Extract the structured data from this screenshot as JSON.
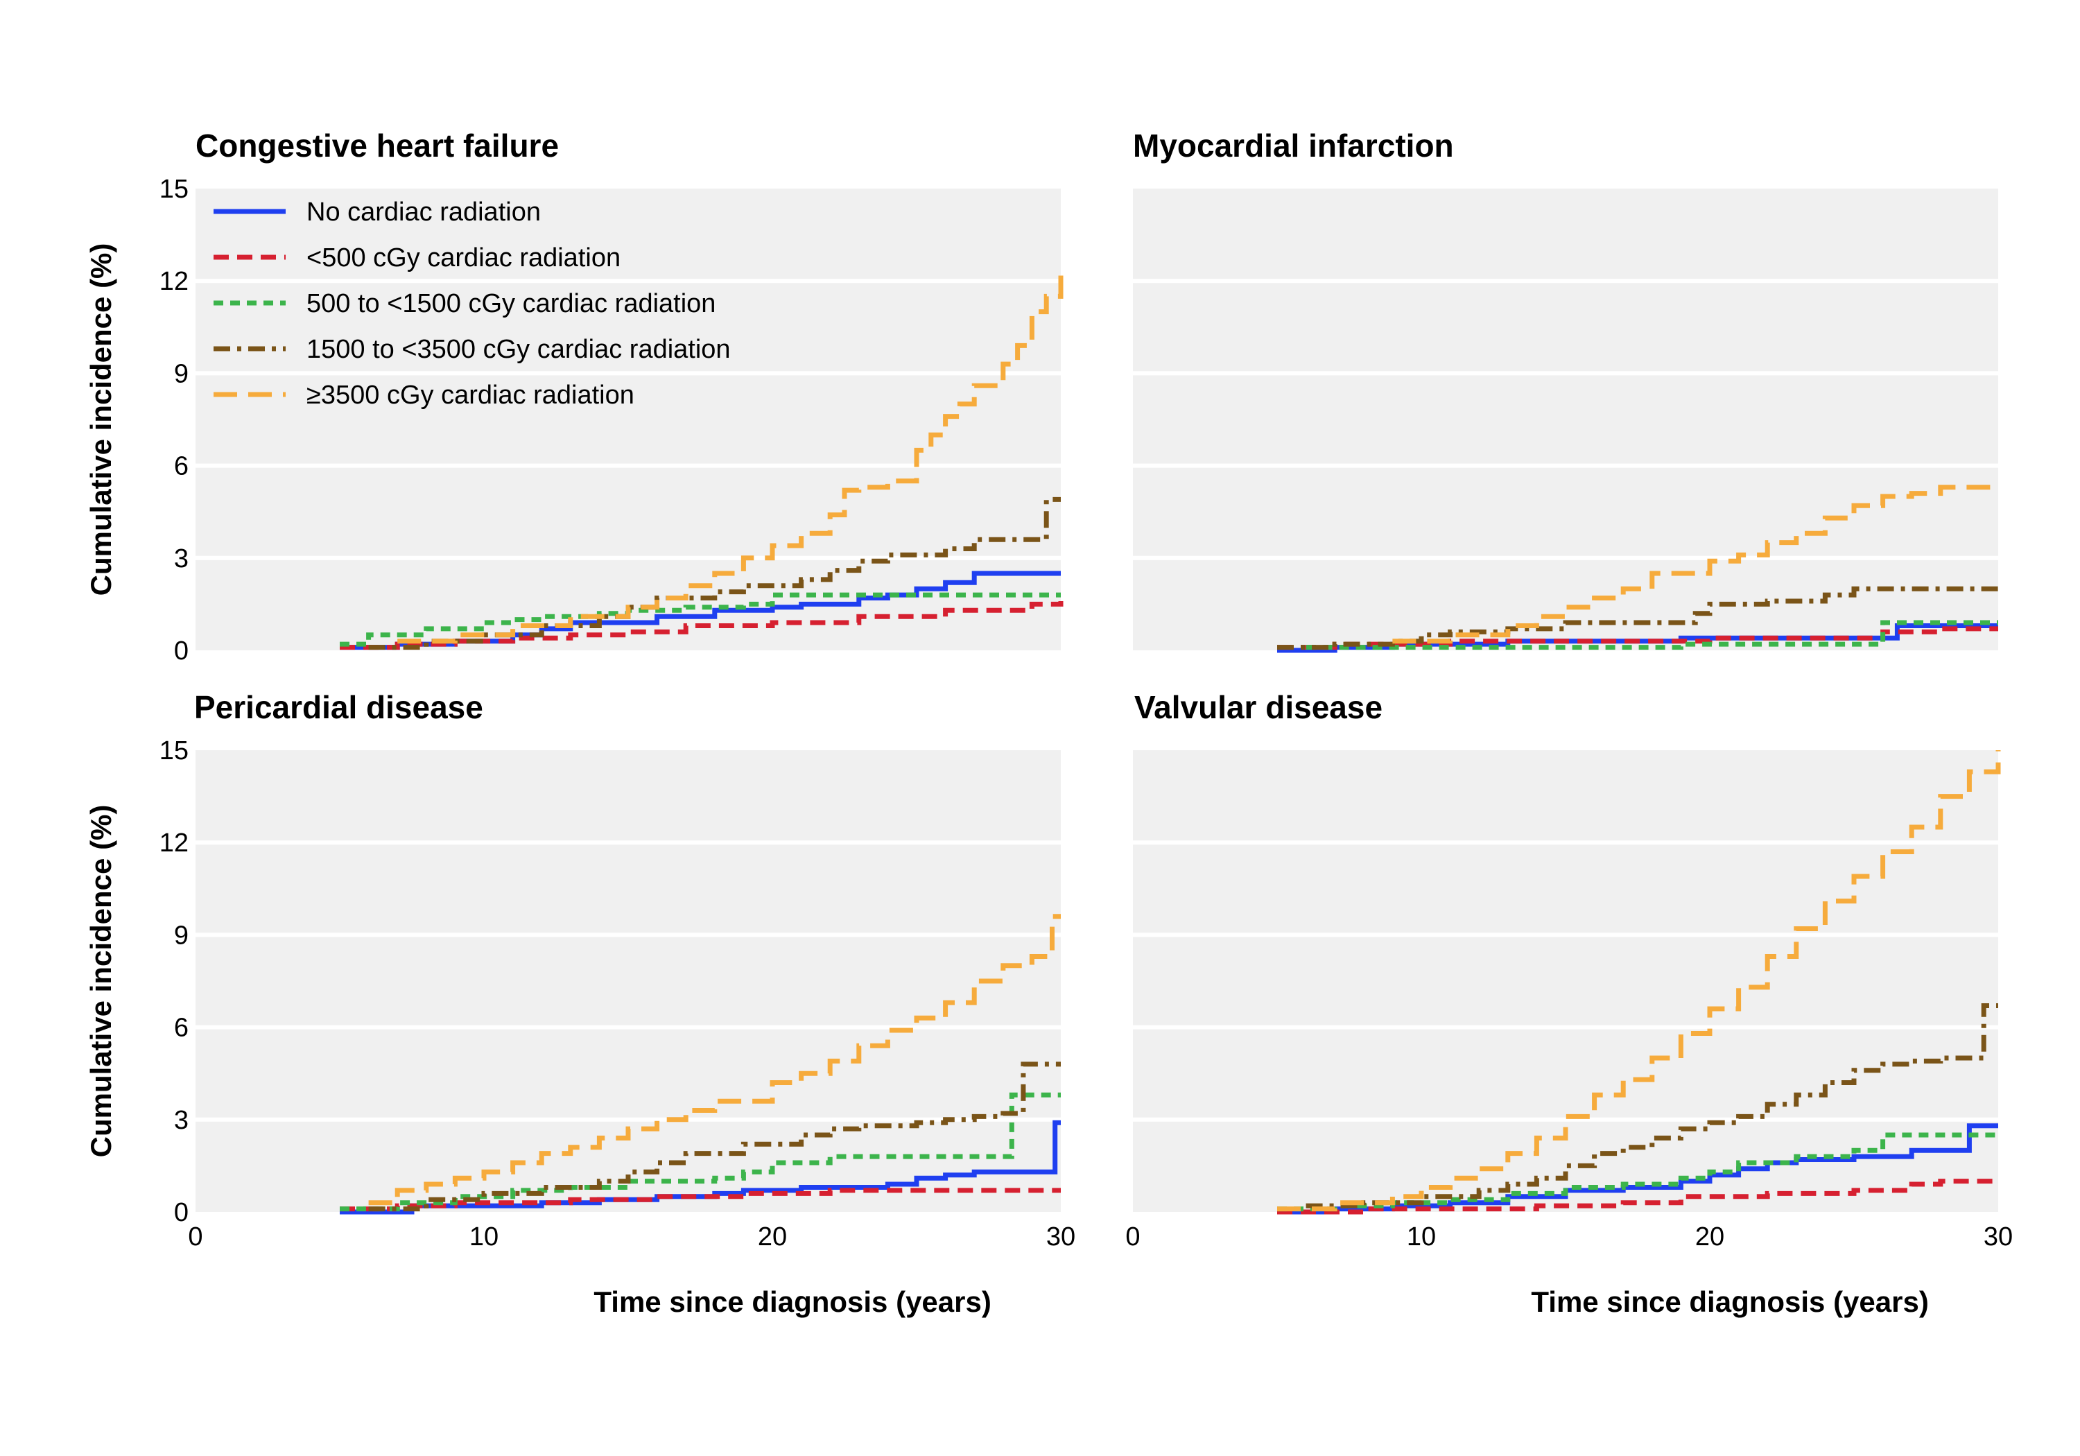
{
  "chart_data": [
    {
      "type": "line",
      "step": true,
      "title": "Congestive heart failure",
      "xlabel": "",
      "ylabel": "Cumulative incidence (%)",
      "xlim": [
        0,
        30
      ],
      "ylim": [
        0,
        15
      ],
      "yticks": [
        "0",
        "3",
        "6",
        "9",
        "12",
        "15"
      ],
      "xticks": [],
      "grid": "horizontal",
      "legend": "top-left",
      "series": [
        {
          "name": "No cardiac radiation",
          "x": [
            5,
            7,
            9,
            11,
            12,
            13,
            16,
            18,
            20,
            21,
            23,
            24,
            25,
            26,
            27,
            30
          ],
          "y": [
            0.1,
            0.2,
            0.3,
            0.5,
            0.7,
            0.9,
            1.1,
            1.3,
            1.4,
            1.5,
            1.7,
            1.8,
            2.0,
            2.2,
            2.5,
            2.5
          ]
        },
        {
          "name": "<500 cGy cardiac radiation",
          "x": [
            5,
            7,
            9,
            11,
            13,
            15,
            17,
            20,
            23,
            26,
            29,
            30
          ],
          "y": [
            0.1,
            0.2,
            0.3,
            0.4,
            0.5,
            0.6,
            0.8,
            0.9,
            1.1,
            1.3,
            1.5,
            1.6
          ]
        },
        {
          "name": "500 to <1500 cGy cardiac radiation",
          "x": [
            5,
            6,
            8,
            10,
            11,
            12,
            14,
            15,
            17,
            19,
            20,
            22,
            25,
            30
          ],
          "y": [
            0.2,
            0.5,
            0.7,
            0.9,
            1.0,
            1.1,
            1.2,
            1.3,
            1.4,
            1.5,
            1.8,
            1.8,
            1.8,
            1.8
          ]
        },
        {
          "name": "1500 to <3500 cGy cardiac radiation",
          "x": [
            6,
            8,
            10,
            12,
            14,
            15,
            16,
            18,
            19,
            21,
            22,
            23,
            24,
            25,
            26,
            27,
            29,
            29.5,
            30
          ],
          "y": [
            0.1,
            0.3,
            0.5,
            0.8,
            1.1,
            1.4,
            1.7,
            1.9,
            2.1,
            2.3,
            2.6,
            2.9,
            3.1,
            3.1,
            3.3,
            3.6,
            3.6,
            4.9,
            4.9
          ]
        },
        {
          "name": "≥3500 cGy cardiac radiation",
          "x": [
            7,
            9,
            11,
            13,
            15,
            16,
            17,
            18,
            19,
            20,
            21,
            22,
            22.5,
            23,
            24,
            25,
            25.5,
            26,
            26.5,
            27,
            28,
            28.5,
            29,
            29.5,
            30
          ],
          "y": [
            0.3,
            0.5,
            0.8,
            1.1,
            1.4,
            1.7,
            2.1,
            2.5,
            3.0,
            3.4,
            3.8,
            4.4,
            5.2,
            5.3,
            5.5,
            6.5,
            7.0,
            7.6,
            8.0,
            8.6,
            9.3,
            9.9,
            11.0,
            11.5,
            12.3
          ]
        }
      ]
    },
    {
      "type": "line",
      "step": true,
      "title": "Myocardial infarction",
      "xlabel": "",
      "ylabel": "",
      "xlim": [
        0,
        30
      ],
      "ylim": [
        0,
        15
      ],
      "yticks": [],
      "xticks": [],
      "grid": "horizontal",
      "legend": "none",
      "series": [
        {
          "name": "No cardiac radiation",
          "x": [
            5,
            7,
            9,
            11,
            13,
            15,
            18,
            19,
            21,
            24,
            25,
            26.5,
            28,
            30
          ],
          "y": [
            0.0,
            0.1,
            0.2,
            0.2,
            0.3,
            0.3,
            0.3,
            0.4,
            0.4,
            0.4,
            0.4,
            0.8,
            0.8,
            0.8
          ]
        },
        {
          "name": "<500 cGy cardiac radiation",
          "x": [
            5,
            7,
            9,
            11,
            14,
            17,
            20,
            24,
            26,
            28,
            30
          ],
          "y": [
            0.1,
            0.2,
            0.2,
            0.3,
            0.3,
            0.3,
            0.4,
            0.4,
            0.6,
            0.7,
            0.7
          ]
        },
        {
          "name": "500 to <1500 cGy cardiac radiation",
          "x": [
            6,
            8,
            10,
            12,
            15,
            18,
            19,
            22,
            25,
            26,
            30
          ],
          "y": [
            0.1,
            0.1,
            0.1,
            0.1,
            0.1,
            0.1,
            0.2,
            0.2,
            0.2,
            0.9,
            0.9
          ]
        },
        {
          "name": "1500 to <3500 cGy cardiac radiation",
          "x": [
            5,
            7,
            9,
            10,
            11,
            13,
            15,
            17,
            19,
            19.5,
            20,
            22,
            24,
            25,
            27,
            30
          ],
          "y": [
            0.1,
            0.2,
            0.3,
            0.5,
            0.6,
            0.7,
            0.9,
            0.9,
            0.9,
            1.2,
            1.5,
            1.6,
            1.8,
            2.0,
            2.0,
            2.0
          ]
        },
        {
          "name": "≥3500 cGy cardiac radiation",
          "x": [
            9,
            11,
            13,
            14,
            15,
            16,
            17,
            18,
            20,
            21,
            22,
            23,
            24,
            25,
            26,
            27,
            28,
            30
          ],
          "y": [
            0.3,
            0.5,
            0.8,
            1.1,
            1.4,
            1.7,
            2.0,
            2.5,
            2.9,
            3.1,
            3.5,
            3.8,
            4.3,
            4.7,
            5.0,
            5.1,
            5.3,
            5.4
          ]
        }
      ]
    },
    {
      "type": "line",
      "step": true,
      "title": "Pericardial disease",
      "xlabel": "Time since diagnosis (years)",
      "ylabel": "Cumulative incidence (%)",
      "xlim": [
        0,
        30
      ],
      "ylim": [
        0,
        15
      ],
      "yticks": [
        "0",
        "3",
        "6",
        "9",
        "12",
        "15"
      ],
      "xticks": [
        "0",
        "10",
        "20",
        "30"
      ],
      "grid": "horizontal",
      "legend": "none",
      "series": [
        {
          "name": "No cardiac radiation",
          "x": [
            5,
            7.5,
            10,
            12,
            14,
            16,
            18,
            19,
            21,
            24,
            25,
            26,
            27,
            29.8,
            29.8,
            30
          ],
          "y": [
            0.0,
            0.2,
            0.2,
            0.3,
            0.4,
            0.5,
            0.6,
            0.7,
            0.8,
            0.9,
            1.1,
            1.2,
            1.3,
            1.3,
            2.9,
            2.9
          ]
        },
        {
          "name": "<500 cGy cardiac radiation",
          "x": [
            5,
            7,
            9,
            11,
            13,
            16,
            19,
            22,
            25,
            30
          ],
          "y": [
            0.1,
            0.2,
            0.3,
            0.3,
            0.4,
            0.5,
            0.6,
            0.7,
            0.7,
            0.7
          ]
        },
        {
          "name": "500 to <1500 cGy cardiac radiation",
          "x": [
            5,
            7,
            9,
            11,
            13,
            15,
            18,
            19,
            20,
            22,
            25,
            28,
            28.3,
            30
          ],
          "y": [
            0.1,
            0.3,
            0.5,
            0.7,
            0.8,
            1.0,
            1.1,
            1.3,
            1.6,
            1.8,
            1.8,
            1.8,
            3.8,
            3.8
          ]
        },
        {
          "name": "1500 to <3500 cGy cardiac radiation",
          "x": [
            6,
            8,
            10,
            12,
            14,
            15,
            16,
            17,
            19,
            21,
            22,
            23,
            25,
            26,
            27,
            28,
            28.7,
            30
          ],
          "y": [
            0.1,
            0.4,
            0.6,
            0.8,
            1.0,
            1.3,
            1.6,
            1.9,
            2.2,
            2.5,
            2.7,
            2.8,
            2.9,
            3.0,
            3.1,
            3.2,
            4.8,
            4.8
          ]
        },
        {
          "name": "≥3500 cGy cardiac radiation",
          "x": [
            6,
            7,
            8,
            9,
            10,
            11,
            12,
            13,
            14,
            15,
            16,
            17,
            18,
            20,
            21,
            22,
            23,
            24,
            25,
            26,
            27,
            28,
            29,
            29.7,
            30
          ],
          "y": [
            0.3,
            0.7,
            0.9,
            1.1,
            1.3,
            1.6,
            1.9,
            2.1,
            2.4,
            2.7,
            3.0,
            3.3,
            3.6,
            4.2,
            4.5,
            4.9,
            5.4,
            5.9,
            6.3,
            6.8,
            7.5,
            8.0,
            8.3,
            9.6,
            9.6
          ]
        }
      ]
    },
    {
      "type": "line",
      "step": true,
      "title": "Valvular disease",
      "xlabel": "Time since diagnosis (years)",
      "ylabel": "",
      "xlim": [
        0,
        30
      ],
      "ylim": [
        0,
        15
      ],
      "yticks": [],
      "xticks": [
        "0",
        "10",
        "20",
        "30"
      ],
      "grid": "horizontal",
      "legend": "none",
      "series": [
        {
          "name": "No cardiac radiation",
          "x": [
            5,
            7,
            9,
            11,
            13,
            15,
            17,
            19,
            20,
            21,
            22,
            23,
            25,
            27,
            29,
            30
          ],
          "y": [
            0.0,
            0.1,
            0.2,
            0.3,
            0.5,
            0.7,
            0.8,
            1.0,
            1.2,
            1.4,
            1.6,
            1.7,
            1.8,
            2.0,
            2.8,
            2.8
          ]
        },
        {
          "name": "<500 cGy cardiac radiation",
          "x": [
            5,
            8,
            11,
            14,
            17,
            19,
            22,
            25,
            27,
            28,
            30
          ],
          "y": [
            0.0,
            0.1,
            0.1,
            0.2,
            0.3,
            0.5,
            0.6,
            0.7,
            0.9,
            1.0,
            1.0
          ]
        },
        {
          "name": "500 to <1500 cGy cardiac radiation",
          "x": [
            5,
            7,
            9,
            11,
            13,
            15,
            17,
            19,
            20,
            21,
            23,
            25,
            26,
            30
          ],
          "y": [
            0.1,
            0.2,
            0.3,
            0.4,
            0.6,
            0.8,
            0.9,
            1.1,
            1.3,
            1.6,
            1.8,
            2.0,
            2.5,
            2.5
          ]
        },
        {
          "name": "1500 to <3500 cGy cardiac radiation",
          "x": [
            6,
            8,
            10,
            12,
            13,
            14,
            15,
            16,
            17,
            18,
            19,
            20,
            21,
            22,
            23,
            24,
            25,
            26,
            27,
            28,
            29,
            29.5,
            30
          ],
          "y": [
            0.2,
            0.3,
            0.5,
            0.7,
            0.9,
            1.1,
            1.5,
            1.9,
            2.1,
            2.4,
            2.7,
            2.9,
            3.1,
            3.5,
            3.8,
            4.2,
            4.6,
            4.8,
            4.9,
            5.0,
            5.0,
            6.7,
            6.7
          ]
        },
        {
          "name": "≥3500 cGy cardiac radiation",
          "x": [
            5,
            7,
            9,
            10,
            11,
            12,
            13,
            14,
            15,
            16,
            17,
            18,
            19,
            20,
            21,
            22,
            23,
            24,
            25,
            26,
            27,
            28,
            29,
            30
          ],
          "y": [
            0.1,
            0.3,
            0.5,
            0.8,
            1.1,
            1.4,
            1.9,
            2.4,
            3.1,
            3.8,
            4.3,
            5.0,
            5.8,
            6.6,
            7.3,
            8.3,
            9.2,
            10.1,
            10.9,
            11.7,
            12.5,
            13.5,
            14.3,
            15.0
          ]
        }
      ]
    }
  ],
  "series_colors": [
    "#1f3ff0",
    "#d62030",
    "#3cb44b",
    "#7a5418",
    "#f6ab3c"
  ],
  "series_dashes": [
    "solid",
    "dash",
    "short-dash",
    "dash-dot",
    "long-dash"
  ]
}
